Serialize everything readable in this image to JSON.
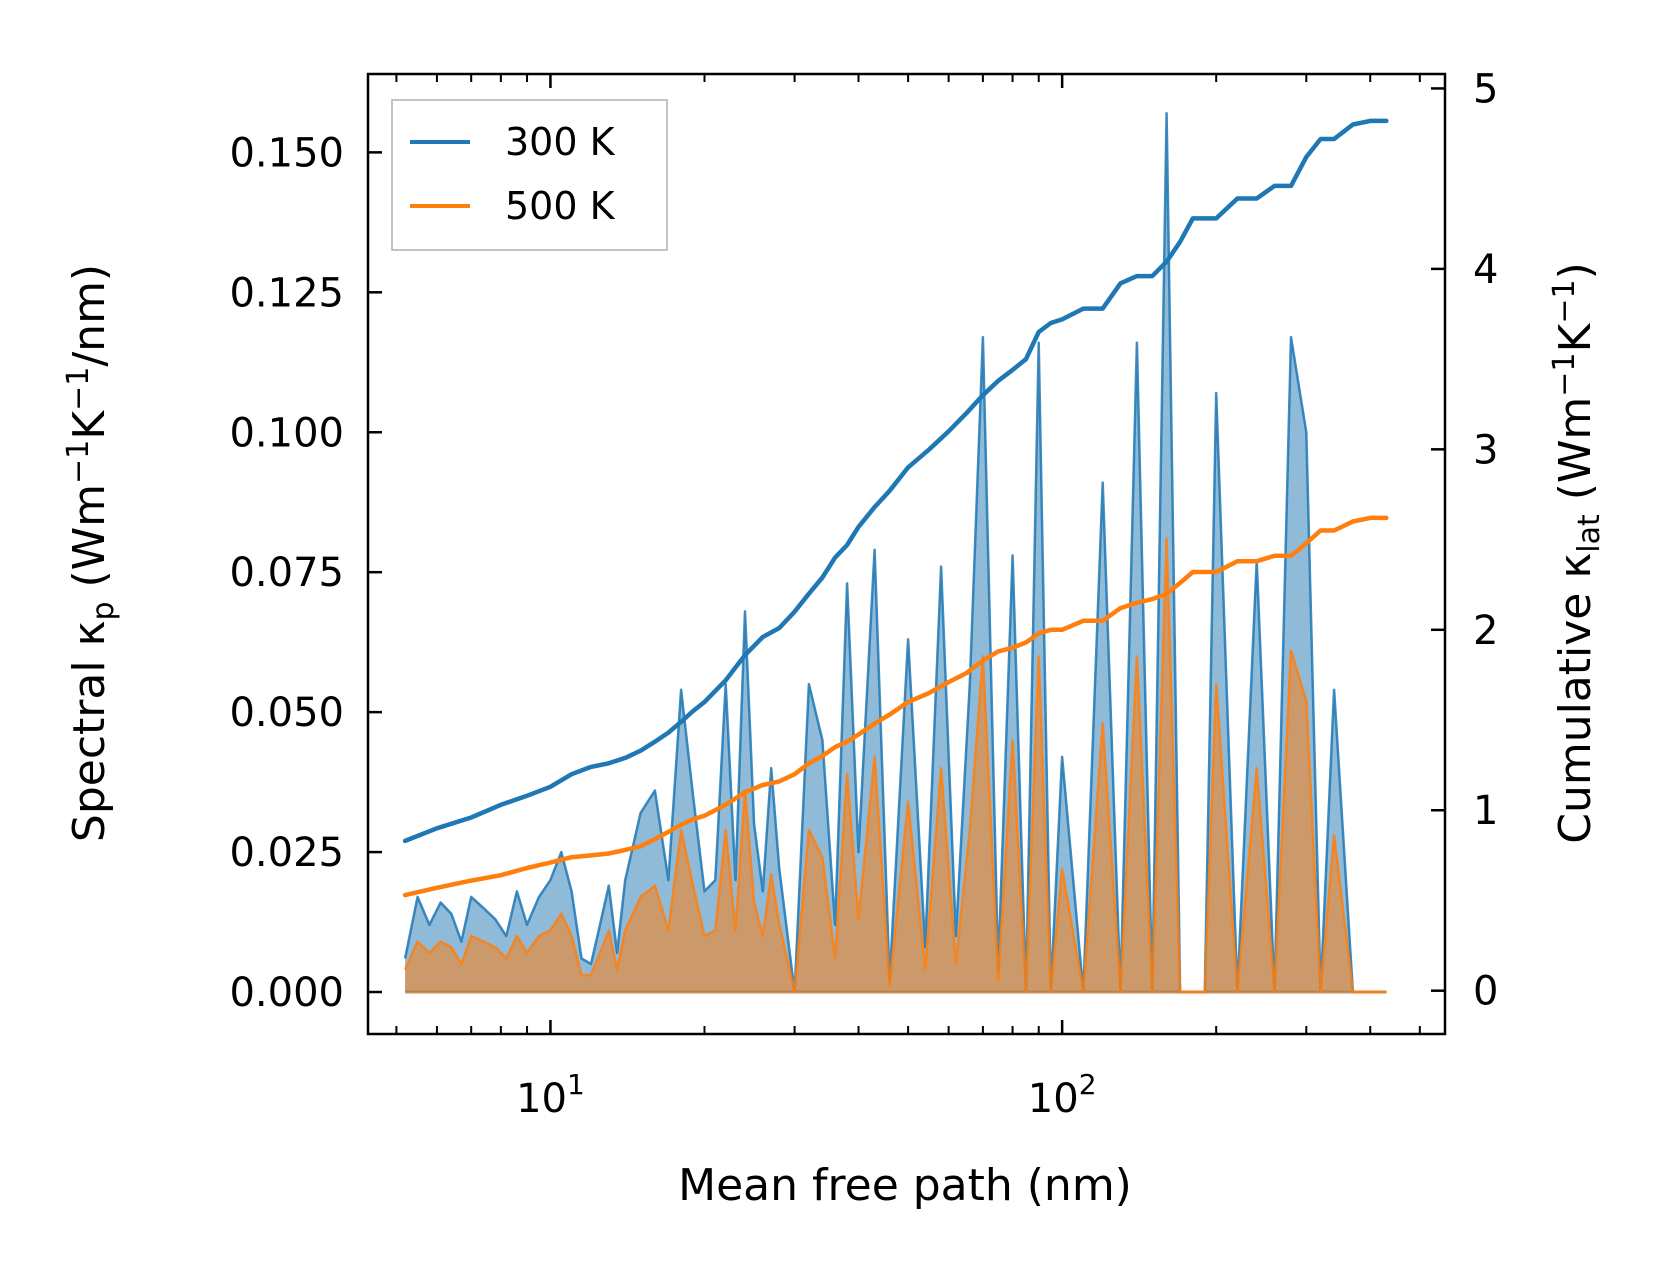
{
  "chart_data": {
    "type": "line",
    "xlabel": "Mean free path (nm)",
    "xscale": "log",
    "xlim": [
      4.4,
      560
    ],
    "x_ticks": [
      {
        "base": "10",
        "exp": "1",
        "value": 10
      },
      {
        "base": "10",
        "exp": "2",
        "value": 100
      }
    ],
    "y_left": {
      "label": {
        "pre": "Spectral κ",
        "sub": "p",
        "post": " (Wm",
        "sup1": "−1",
        "mid": "K",
        "sup2": "−1",
        "end": "/nm)"
      },
      "lim": [
        -0.0075,
        0.164
      ],
      "ticks": [
        "0.000",
        "0.025",
        "0.050",
        "0.075",
        "0.100",
        "0.125",
        "0.150"
      ]
    },
    "y_right": {
      "label": {
        "pre": "Cumulative κ",
        "sub": "lat",
        "post": " (Wm",
        "sup1": "−1",
        "mid": "K",
        "sup2": "−1",
        "end": ")"
      },
      "lim": [
        -0.24,
        5.08
      ],
      "ticks": [
        "0",
        "1",
        "2",
        "3",
        "4",
        "5"
      ]
    },
    "legend": {
      "position": "top-left"
    },
    "series": [
      {
        "name": "300 K",
        "color": "#1f77b4",
        "cumulative": {
          "x": [
            5.2,
            6,
            7,
            8,
            9,
            10,
            11,
            12,
            13,
            14,
            15,
            16,
            17,
            18,
            19,
            20,
            22,
            24,
            26,
            28,
            30,
            32,
            34,
            36,
            38,
            40,
            43,
            46,
            50,
            55,
            60,
            65,
            70,
            75,
            80,
            85,
            90,
            95,
            100,
            110,
            120,
            130,
            140,
            150,
            160,
            170,
            180,
            200,
            220,
            240,
            260,
            280,
            300,
            320,
            340,
            370,
            400,
            430
          ],
          "y": [
            0.83,
            0.9,
            0.96,
            1.03,
            1.08,
            1.13,
            1.2,
            1.24,
            1.26,
            1.29,
            1.33,
            1.38,
            1.43,
            1.49,
            1.55,
            1.6,
            1.72,
            1.86,
            1.96,
            2.01,
            2.1,
            2.2,
            2.29,
            2.4,
            2.47,
            2.57,
            2.68,
            2.77,
            2.9,
            3.0,
            3.1,
            3.2,
            3.3,
            3.38,
            3.44,
            3.5,
            3.65,
            3.7,
            3.72,
            3.78,
            3.78,
            3.92,
            3.96,
            3.96,
            4.04,
            4.15,
            4.28,
            4.28,
            4.39,
            4.39,
            4.46,
            4.46,
            4.62,
            4.72,
            4.72,
            4.8,
            4.82,
            4.82
          ]
        },
        "spectral": {
          "x": [
            5.2,
            5.5,
            5.8,
            6.1,
            6.4,
            6.7,
            7.0,
            7.4,
            7.8,
            8.2,
            8.6,
            9.0,
            9.5,
            10.0,
            10.5,
            11.0,
            11.5,
            12.0,
            12.5,
            13.0,
            13.5,
            14.0,
            15.0,
            16.0,
            17.0,
            18.0,
            19.0,
            20.0,
            21.0,
            22.0,
            23.0,
            24.0,
            25.0,
            26.0,
            27.0,
            28.0,
            30.0,
            32.0,
            34.0,
            36.0,
            38.0,
            40.0,
            43.0,
            46.0,
            50.0,
            54.0,
            58.0,
            62.0,
            66.0,
            70.0,
            75.0,
            80.0,
            85.0,
            90.0,
            95.0,
            100.0,
            110.0,
            120.0,
            130.0,
            140.0,
            150.0,
            160.0,
            170.0,
            180.0,
            190.0,
            200.0,
            220.0,
            240.0,
            260.0,
            280.0,
            300.0,
            320.0,
            340.0,
            370.0,
            400.0,
            430.0
          ],
          "y": [
            0.006,
            0.017,
            0.012,
            0.016,
            0.014,
            0.009,
            0.017,
            0.015,
            0.013,
            0.01,
            0.018,
            0.012,
            0.017,
            0.02,
            0.025,
            0.018,
            0.006,
            0.005,
            0.012,
            0.019,
            0.007,
            0.02,
            0.032,
            0.036,
            0.02,
            0.054,
            0.035,
            0.018,
            0.02,
            0.055,
            0.02,
            0.068,
            0.03,
            0.018,
            0.04,
            0.022,
            0.0,
            0.055,
            0.045,
            0.012,
            0.073,
            0.025,
            0.079,
            0.002,
            0.063,
            0.008,
            0.076,
            0.01,
            0.055,
            0.117,
            0.004,
            0.078,
            0.0,
            0.116,
            0.0,
            0.042,
            0.0,
            0.091,
            0.0,
            0.116,
            0.0,
            0.157,
            0.0,
            0.0,
            0.0,
            0.107,
            0.0,
            0.077,
            0.0,
            0.117,
            0.1,
            0.0,
            0.054,
            0.0,
            0.0,
            0.0
          ]
        }
      },
      {
        "name": "500 K",
        "color": "#ff7f0e",
        "cumulative": {
          "x": [
            5.2,
            6,
            7,
            8,
            9,
            10,
            11,
            12,
            13,
            14,
            15,
            16,
            17,
            18,
            19,
            20,
            22,
            24,
            26,
            28,
            30,
            32,
            34,
            36,
            38,
            40,
            43,
            46,
            50,
            55,
            60,
            65,
            70,
            75,
            80,
            85,
            90,
            95,
            100,
            110,
            120,
            130,
            140,
            150,
            160,
            170,
            180,
            200,
            220,
            240,
            260,
            280,
            300,
            320,
            340,
            370,
            400,
            430
          ],
          "y": [
            0.53,
            0.57,
            0.61,
            0.64,
            0.68,
            0.71,
            0.74,
            0.75,
            0.76,
            0.78,
            0.8,
            0.84,
            0.88,
            0.92,
            0.95,
            0.97,
            1.03,
            1.1,
            1.14,
            1.16,
            1.2,
            1.26,
            1.3,
            1.35,
            1.38,
            1.42,
            1.48,
            1.53,
            1.6,
            1.65,
            1.71,
            1.76,
            1.83,
            1.88,
            1.9,
            1.93,
            1.98,
            2.0,
            2.0,
            2.05,
            2.05,
            2.12,
            2.15,
            2.17,
            2.2,
            2.26,
            2.32,
            2.32,
            2.38,
            2.38,
            2.41,
            2.41,
            2.48,
            2.55,
            2.55,
            2.6,
            2.62,
            2.62
          ]
        },
        "spectral": {
          "x": [
            5.2,
            5.5,
            5.8,
            6.1,
            6.4,
            6.7,
            7.0,
            7.4,
            7.8,
            8.2,
            8.6,
            9.0,
            9.5,
            10.0,
            10.5,
            11.0,
            11.5,
            12.0,
            12.5,
            13.0,
            13.5,
            14.0,
            15.0,
            16.0,
            17.0,
            18.0,
            19.0,
            20.0,
            21.0,
            22.0,
            23.0,
            24.0,
            25.0,
            26.0,
            27.0,
            28.0,
            30.0,
            32.0,
            34.0,
            36.0,
            38.0,
            40.0,
            43.0,
            46.0,
            50.0,
            54.0,
            58.0,
            62.0,
            66.0,
            70.0,
            75.0,
            80.0,
            85.0,
            90.0,
            95.0,
            100.0,
            110.0,
            120.0,
            130.0,
            140.0,
            150.0,
            160.0,
            170.0,
            180.0,
            190.0,
            200.0,
            220.0,
            240.0,
            260.0,
            280.0,
            300.0,
            320.0,
            340.0,
            370.0,
            400.0,
            430.0
          ],
          "y": [
            0.004,
            0.009,
            0.007,
            0.009,
            0.008,
            0.005,
            0.01,
            0.009,
            0.008,
            0.006,
            0.01,
            0.007,
            0.01,
            0.011,
            0.014,
            0.01,
            0.003,
            0.003,
            0.007,
            0.011,
            0.004,
            0.011,
            0.017,
            0.019,
            0.011,
            0.029,
            0.019,
            0.01,
            0.011,
            0.029,
            0.011,
            0.036,
            0.016,
            0.01,
            0.021,
            0.012,
            0.0,
            0.029,
            0.024,
            0.006,
            0.039,
            0.013,
            0.042,
            0.001,
            0.034,
            0.004,
            0.04,
            0.005,
            0.029,
            0.06,
            0.002,
            0.045,
            0.0,
            0.06,
            0.0,
            0.022,
            0.0,
            0.048,
            0.0,
            0.06,
            0.0,
            0.081,
            0.0,
            0.0,
            0.0,
            0.055,
            0.0,
            0.04,
            0.0,
            0.061,
            0.052,
            0.0,
            0.028,
            0.0,
            0.0,
            0.0
          ]
        }
      }
    ]
  }
}
